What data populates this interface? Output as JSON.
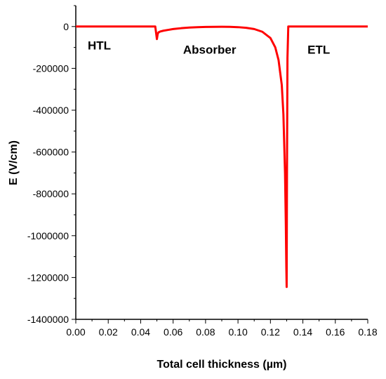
{
  "chart_data": {
    "type": "line",
    "title": "",
    "xlabel": "Total cell thickness (µm)",
    "ylabel": "E  (V/cm)",
    "xlim": [
      0.0,
      0.18
    ],
    "ylim": [
      -1400000,
      100000
    ],
    "x_ticks": [
      0.0,
      0.02,
      0.04,
      0.06,
      0.08,
      0.1,
      0.12,
      0.14,
      0.16,
      0.18
    ],
    "x_tick_labels": [
      "0.00",
      "0.02",
      "0.04",
      "0.06",
      "0.08",
      "0.10",
      "0.12",
      "0.14",
      "0.16",
      "0.18"
    ],
    "y_ticks": [
      0,
      -200000,
      -400000,
      -600000,
      -800000,
      -1000000,
      -1200000,
      -1400000
    ],
    "y_tick_labels": [
      "0",
      "-200000",
      "-400000",
      "-600000",
      "-800000",
      "-1000000",
      "-1200000",
      "-1400000"
    ],
    "grid": false,
    "series_color": "#ff0000",
    "series": [
      {
        "x": [
          0.0,
          0.02,
          0.04,
          0.049,
          0.0495,
          0.05,
          0.0505,
          0.051,
          0.052,
          0.054,
          0.057,
          0.06,
          0.065,
          0.07,
          0.075,
          0.08,
          0.085,
          0.09,
          0.095,
          0.1,
          0.105,
          0.11,
          0.115,
          0.12,
          0.123,
          0.125,
          0.127,
          0.128,
          0.129,
          0.1295,
          0.1298,
          0.13,
          0.1302,
          0.1305,
          0.131,
          0.132,
          0.14,
          0.16,
          0.18
        ],
        "y": [
          0,
          0,
          0,
          0,
          -30000,
          -60000,
          -35000,
          -28000,
          -24000,
          -20000,
          -16000,
          -12000,
          -8000,
          -5000,
          -3000,
          -2000,
          -1500,
          -1200,
          -1500,
          -3000,
          -6000,
          -12000,
          -25000,
          -55000,
          -100000,
          -160000,
          -280000,
          -420000,
          -700000,
          -950000,
          -1150000,
          -1245000,
          -700000,
          -150000,
          0,
          0,
          0,
          0,
          0
        ]
      }
    ],
    "annotations": [
      {
        "text": "HTL",
        "x": 0.0145,
        "y": -90000
      },
      {
        "text": "Absorber",
        "x": 0.0825,
        "y": -110000
      },
      {
        "text": "ETL",
        "x": 0.1498,
        "y": -110000
      }
    ]
  }
}
